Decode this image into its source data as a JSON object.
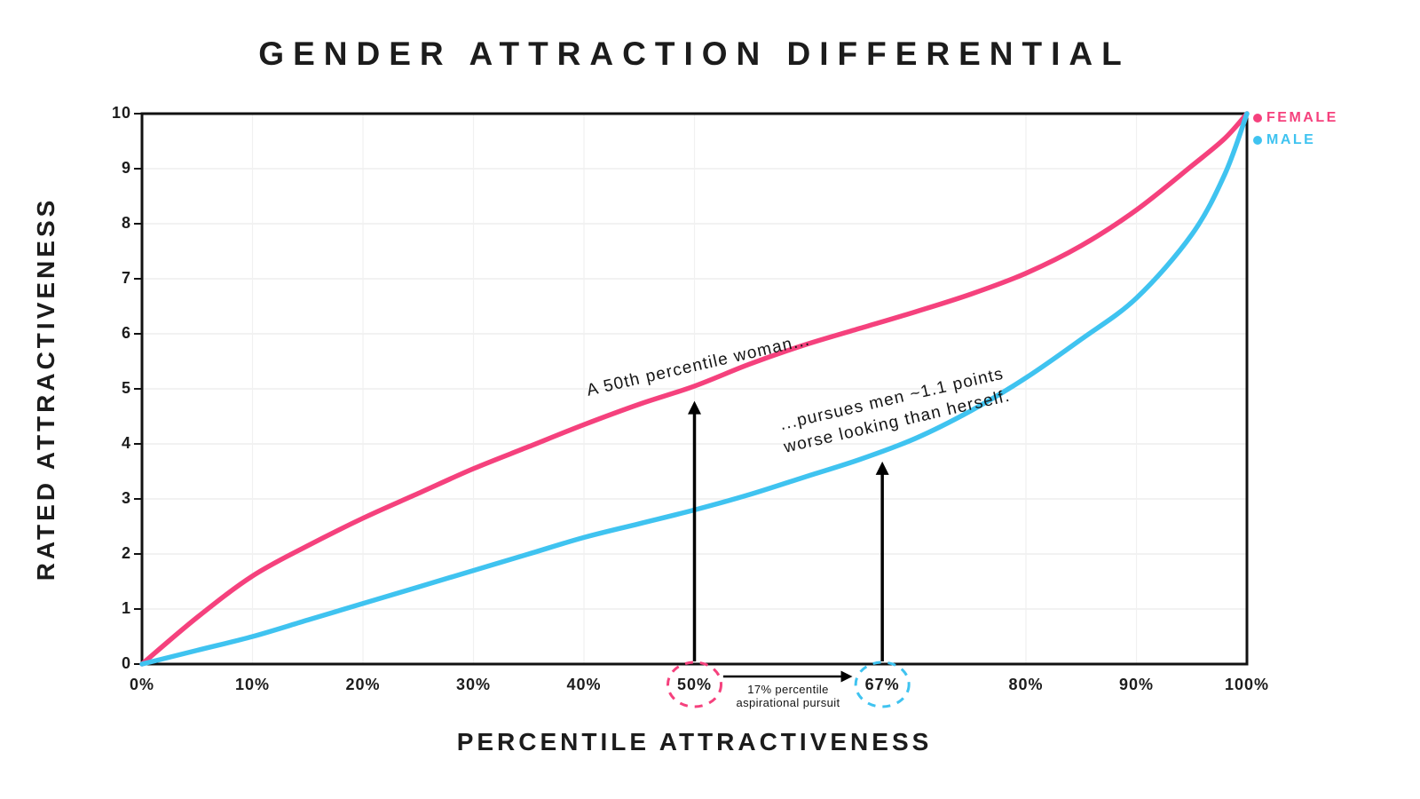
{
  "title": "GENDER ATTRACTION DIFFERENTIAL",
  "axes": {
    "x_label": "PERCENTILE ATTRACTIVENESS",
    "y_label": "RATED ATTRACTIVENESS"
  },
  "legend": [
    {
      "label": "FEMALE",
      "color": "#F5417D"
    },
    {
      "label": "MALE",
      "color": "#3FC3F0"
    }
  ],
  "annotations": {
    "female_note": "A 50th percentile woman...",
    "male_note_line1": "...pursues men ~1.1 points",
    "male_note_line2": "worse looking than herself.",
    "pursuit_line1": "17% percentile",
    "pursuit_line2": "aspirational pursuit"
  },
  "chart_data": {
    "type": "line",
    "title": "GENDER ATTRACTION DIFFERENTIAL",
    "xlabel": "PERCENTILE ATTRACTIVENESS",
    "ylabel": "RATED ATTRACTIVENESS",
    "xlim": [
      0,
      100
    ],
    "ylim": [
      0,
      10
    ],
    "grid": true,
    "legend_position": "top-right",
    "colors": {
      "female": "#F5417D",
      "male": "#3FC3F0",
      "grid": "#eaeaea",
      "axis": "#111111"
    },
    "y_ticks": [
      0,
      1,
      2,
      3,
      4,
      5,
      6,
      7,
      8,
      9,
      10
    ],
    "x_ticks": [
      {
        "v": 0,
        "label": "0%"
      },
      {
        "v": 10,
        "label": "10%"
      },
      {
        "v": 20,
        "label": "20%"
      },
      {
        "v": 30,
        "label": "30%"
      },
      {
        "v": 40,
        "label": "40%"
      },
      {
        "v": 50,
        "label": "50%",
        "circle": "female"
      },
      {
        "v": 67,
        "label": "67%",
        "circle": "male"
      },
      {
        "v": 80,
        "label": "80%"
      },
      {
        "v": 90,
        "label": "90%"
      },
      {
        "v": 100,
        "label": "100%"
      }
    ],
    "series": [
      {
        "name": "FEMALE",
        "color_key": "female",
        "points": [
          [
            0,
            0
          ],
          [
            5,
            0.85
          ],
          [
            10,
            1.6
          ],
          [
            15,
            2.15
          ],
          [
            20,
            2.65
          ],
          [
            25,
            3.1
          ],
          [
            30,
            3.55
          ],
          [
            35,
            3.95
          ],
          [
            40,
            4.35
          ],
          [
            45,
            4.72
          ],
          [
            50,
            5.05
          ],
          [
            55,
            5.45
          ],
          [
            60,
            5.8
          ],
          [
            65,
            6.1
          ],
          [
            70,
            6.4
          ],
          [
            75,
            6.72
          ],
          [
            80,
            7.1
          ],
          [
            85,
            7.6
          ],
          [
            90,
            8.25
          ],
          [
            95,
            9.05
          ],
          [
            98,
            9.55
          ],
          [
            100,
            10
          ]
        ]
      },
      {
        "name": "MALE",
        "color_key": "male",
        "points": [
          [
            0,
            0
          ],
          [
            5,
            0.25
          ],
          [
            10,
            0.5
          ],
          [
            15,
            0.8
          ],
          [
            20,
            1.1
          ],
          [
            25,
            1.4
          ],
          [
            30,
            1.7
          ],
          [
            35,
            2.0
          ],
          [
            40,
            2.3
          ],
          [
            45,
            2.55
          ],
          [
            50,
            2.8
          ],
          [
            55,
            3.08
          ],
          [
            60,
            3.4
          ],
          [
            65,
            3.72
          ],
          [
            70,
            4.1
          ],
          [
            75,
            4.6
          ],
          [
            80,
            5.2
          ],
          [
            85,
            5.9
          ],
          [
            90,
            6.65
          ],
          [
            95,
            7.8
          ],
          [
            98,
            8.9
          ],
          [
            100,
            10
          ]
        ]
      },
      {
        "name": "vertical_arrows",
        "arrows": [
          {
            "x": 50,
            "tip_y": 4.78
          },
          {
            "x": 67,
            "tip_y": 3.68
          }
        ]
      }
    ],
    "pursuit_arrow": {
      "from_x": 52.6,
      "to_x": 64.3,
      "delta_label": "17% percentile aspirational pursuit"
    }
  }
}
